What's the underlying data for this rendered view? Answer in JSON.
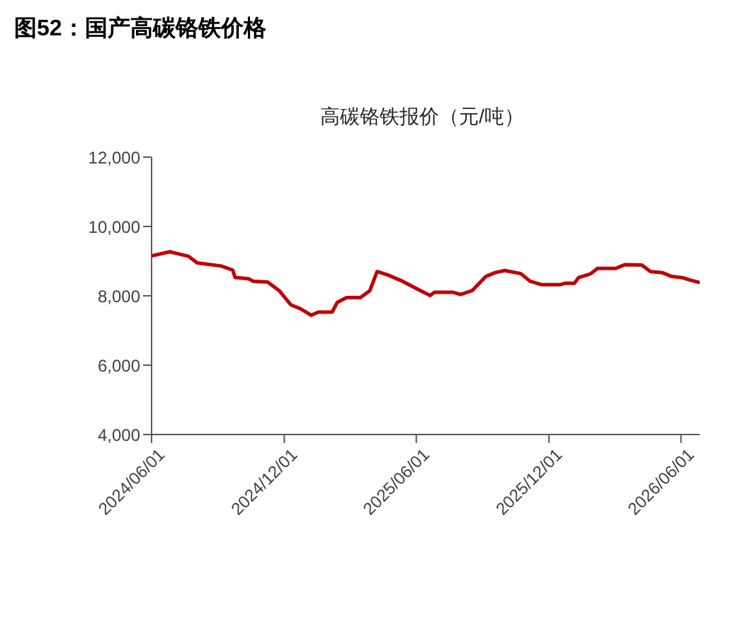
{
  "chart_data": {
    "type": "line",
    "title": "图52：国产高碳铬铁价格",
    "subtitle": "高碳铬铁报价（元/吨）",
    "x": [
      "2024-06-01",
      "2024-06-26",
      "2024-07-22",
      "2024-08-03",
      "2024-09-05",
      "2024-09-21",
      "2024-09-24",
      "2024-10-13",
      "2024-10-19",
      "2024-11-08",
      "2024-11-24",
      "2024-12-10",
      "2024-12-23",
      "2025-01-07",
      "2025-01-17",
      "2025-02-05",
      "2025-02-12",
      "2025-02-25",
      "2025-03-16",
      "2025-03-29",
      "2025-04-08",
      "2025-04-23",
      "2025-05-13",
      "2025-06-04",
      "2025-06-20",
      "2025-06-26",
      "2025-07-22",
      "2025-08-01",
      "2025-08-17",
      "2025-09-05",
      "2025-09-18",
      "2025-10-01",
      "2025-10-23",
      "2025-11-05",
      "2025-11-21",
      "2025-12-16",
      "2025-12-23",
      "2026-01-05",
      "2026-01-11",
      "2026-01-27",
      "2026-02-06",
      "2026-03-03",
      "2026-03-16",
      "2026-04-08",
      "2026-04-20",
      "2026-05-06",
      "2026-05-19",
      "2026-06-04",
      "2026-06-14",
      "2026-06-27"
    ],
    "series": [
      {
        "color": "#c00000",
        "values": [
          9150,
          9270,
          9140,
          8950,
          8860,
          8740,
          8530,
          8490,
          8420,
          8400,
          8150,
          7740,
          7630,
          7440,
          7530,
          7530,
          7810,
          7950,
          7950,
          8150,
          8700,
          8600,
          8420,
          8180,
          8010,
          8100,
          8100,
          8040,
          8150,
          8560,
          8670,
          8730,
          8640,
          8420,
          8320,
          8320,
          8360,
          8360,
          8530,
          8630,
          8790,
          8790,
          8900,
          8890,
          8700,
          8670,
          8560,
          8520,
          8450,
          8380
        ]
      }
    ],
    "xlim": [
      "2024-06-01",
      "2026-06-27"
    ],
    "xticks": [
      {
        "value": "2024-06-01",
        "label": "2024/06/01"
      },
      {
        "value": "2024-12-01",
        "label": "2024/12/01"
      },
      {
        "value": "2025-06-01",
        "label": "2025/06/01"
      },
      {
        "value": "2025-12-01",
        "label": "2025/12/01"
      },
      {
        "value": "2026-06-01",
        "label": "2026/06/01"
      }
    ],
    "ylim": [
      4000,
      12000
    ],
    "yticks": [
      {
        "value": 4000,
        "label": "4,000"
      },
      {
        "value": 6000,
        "label": "6,000"
      },
      {
        "value": 8000,
        "label": "8,000"
      },
      {
        "value": 10000,
        "label": "10,000"
      },
      {
        "value": 12000,
        "label": "12,000"
      }
    ],
    "grid": false,
    "legend": false,
    "marker": "none",
    "line_style": "solid"
  }
}
